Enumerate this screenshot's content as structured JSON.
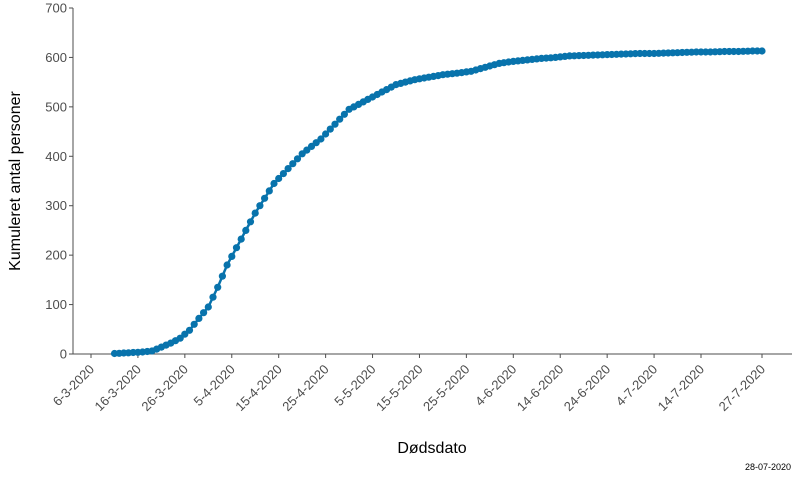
{
  "chart_data": {
    "type": "line",
    "xlabel": "Dødsdato",
    "ylabel": "Kumuleret antal personer",
    "ylim": [
      0,
      700
    ],
    "yticks": [
      0,
      100,
      200,
      300,
      400,
      500,
      600,
      700
    ],
    "xlim": [
      "2020-03-06",
      "2020-07-27"
    ],
    "xticks": [
      "2020-03-06",
      "2020-03-16",
      "2020-03-26",
      "2020-04-05",
      "2020-04-15",
      "2020-04-25",
      "2020-05-05",
      "2020-05-15",
      "2020-05-25",
      "2020-06-04",
      "2020-06-14",
      "2020-06-24",
      "2020-07-04",
      "2020-07-14",
      "2020-07-27"
    ],
    "xtick_labels": [
      "6-3-2020",
      "16-3-2020",
      "26-3-2020",
      "5-4-2020",
      "15-4-2020",
      "25-4-2020",
      "5-5-2020",
      "15-5-2020",
      "25-5-2020",
      "4-6-2020",
      "14-6-2020",
      "24-6-2020",
      "4-7-2020",
      "14-7-2020",
      "27-7-2020"
    ],
    "grid": false,
    "legend": "none",
    "marker": "circle",
    "color": "#0873ac",
    "footnote": "28-07-2020",
    "series": [
      {
        "x": [
          "2020-03-11",
          "2020-03-13",
          "2020-03-15",
          "2020-03-17",
          "2020-03-19",
          "2020-03-21",
          "2020-03-23",
          "2020-03-25",
          "2020-03-27",
          "2020-03-29",
          "2020-03-31",
          "2020-04-02",
          "2020-04-04",
          "2020-04-06",
          "2020-04-08",
          "2020-04-10",
          "2020-04-12",
          "2020-04-14",
          "2020-04-16",
          "2020-04-18",
          "2020-04-20",
          "2020-04-22",
          "2020-04-24",
          "2020-04-26",
          "2020-04-28",
          "2020-04-30",
          "2020-05-02",
          "2020-05-04",
          "2020-05-06",
          "2020-05-08",
          "2020-05-10",
          "2020-05-12",
          "2020-05-14",
          "2020-05-17",
          "2020-05-20",
          "2020-05-23",
          "2020-05-26",
          "2020-05-29",
          "2020-06-01",
          "2020-06-04",
          "2020-06-07",
          "2020-06-10",
          "2020-06-13",
          "2020-06-16",
          "2020-06-19",
          "2020-06-22",
          "2020-06-25",
          "2020-06-28",
          "2020-07-01",
          "2020-07-04",
          "2020-07-07",
          "2020-07-10",
          "2020-07-13",
          "2020-07-16",
          "2020-07-19",
          "2020-07-22",
          "2020-07-25",
          "2020-07-27"
        ],
        "y": [
          1,
          2,
          3,
          4,
          6,
          14,
          22,
          32,
          48,
          72,
          95,
          135,
          180,
          215,
          250,
          285,
          315,
          345,
          365,
          385,
          405,
          420,
          435,
          455,
          475,
          495,
          505,
          515,
          525,
          535,
          545,
          550,
          555,
          560,
          565,
          568,
          572,
          580,
          588,
          592,
          595,
          598,
          600,
          603,
          604,
          605,
          606,
          607,
          608,
          608,
          609,
          610,
          611,
          611,
          612,
          612,
          613,
          613
        ]
      }
    ]
  }
}
